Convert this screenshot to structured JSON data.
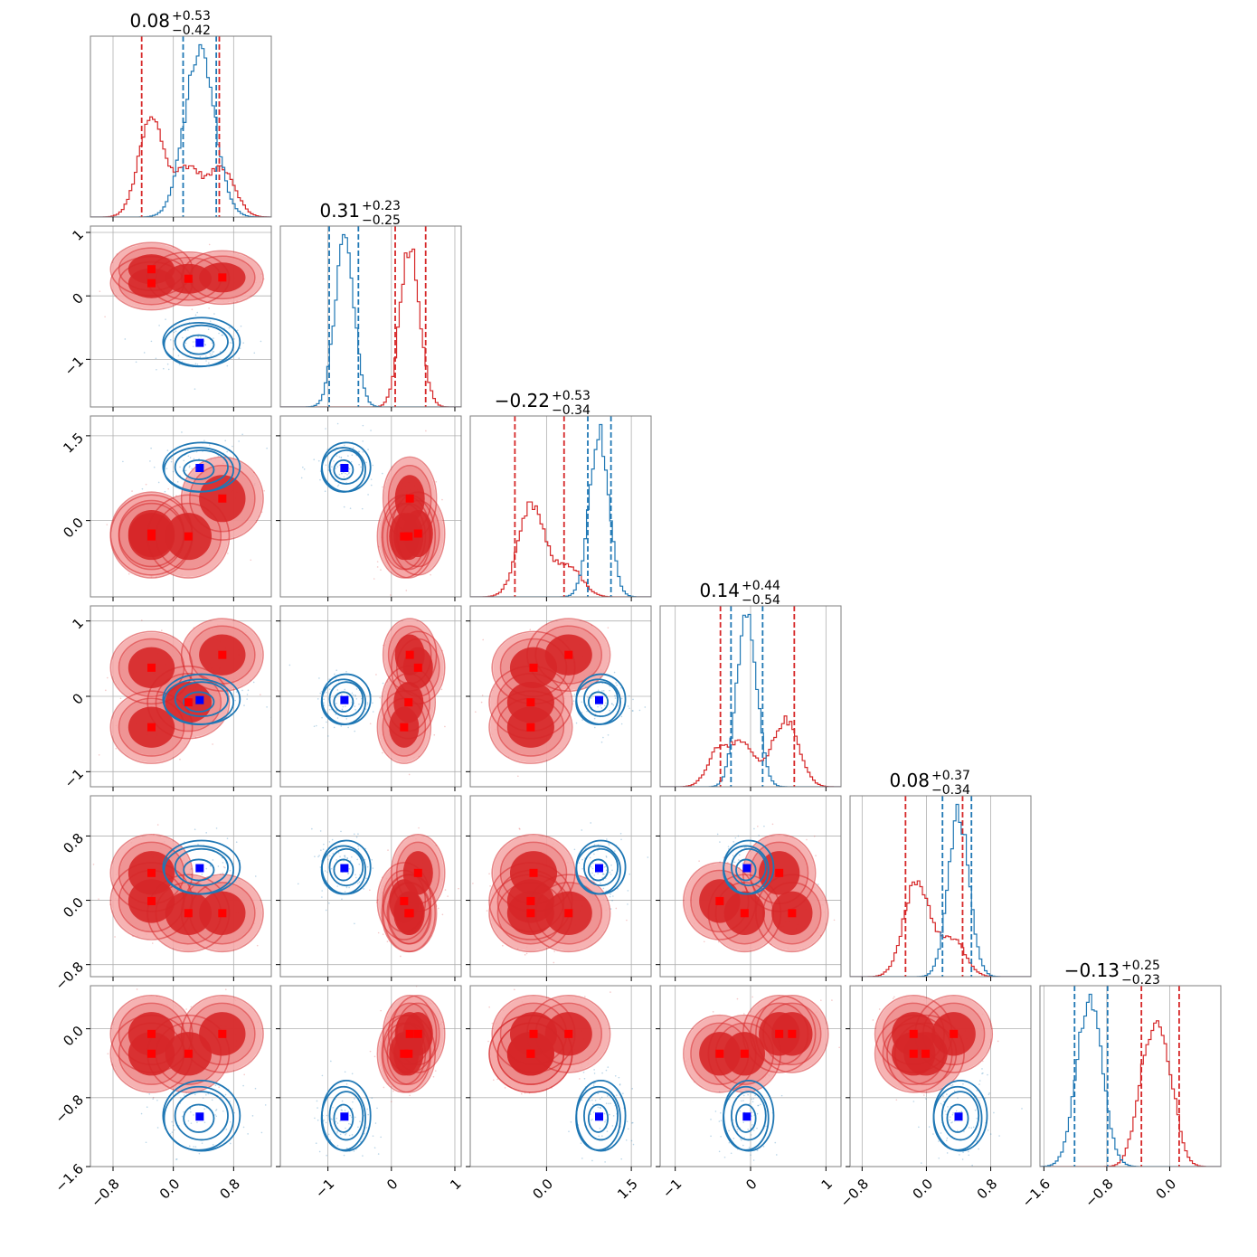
{
  "chart_data": {
    "type": "corner",
    "n_params": 6,
    "grid": true,
    "colors": {
      "series_a": "#d62728",
      "series_b": "#1f77b4",
      "marker_a": "#ff0000",
      "marker_b": "#0000ff"
    },
    "axes": [
      {
        "range": [
          -1.1,
          1.3
        ],
        "ticks": [
          -0.8,
          0.0,
          0.8
        ],
        "tick_labels": [
          "−0.8",
          "0.0",
          "0.8"
        ]
      },
      {
        "range": [
          -1.75,
          1.1
        ],
        "ticks": [
          -1,
          0,
          1
        ],
        "tick_labels": [
          "−1",
          "0",
          "1"
        ]
      },
      {
        "range": [
          -1.35,
          1.85
        ],
        "ticks": [
          0.0,
          1.5
        ],
        "tick_labels": [
          "0.0",
          "1.5"
        ]
      },
      {
        "range": [
          -1.2,
          1.2
        ],
        "ticks": [
          -1,
          0,
          1
        ],
        "tick_labels": [
          "−1",
          "0",
          "1"
        ]
      },
      {
        "range": [
          -0.95,
          1.3
        ],
        "ticks": [
          -0.8,
          0.0,
          0.8
        ],
        "tick_labels": [
          "−0.8",
          "0.0",
          "0.8"
        ]
      },
      {
        "range": [
          -1.65,
          0.65
        ],
        "ticks": [
          -1.6,
          -0.8,
          0.0
        ],
        "tick_labels": [
          "−1.6",
          "−0.8",
          "0.0"
        ]
      }
    ],
    "y_tick_override": [
      null,
      null,
      null,
      null,
      null,
      {
        "ticks": [
          -1.6,
          -0.8,
          0.0
        ],
        "tick_labels": [
          "−1.6",
          "−0.8",
          "0.0"
        ],
        "range": [
          -1.6,
          0.5
        ]
      }
    ],
    "titles": [
      {
        "main": "0.08",
        "upper": "+0.53",
        "lower": "−0.42"
      },
      {
        "main": "0.31",
        "upper": "+0.23",
        "lower": "−0.25"
      },
      {
        "main": "−0.22",
        "upper": "+0.53",
        "lower": "−0.34"
      },
      {
        "main": "0.14",
        "upper": "+0.44",
        "lower": "−0.54"
      },
      {
        "main": "0.08",
        "upper": "+0.37",
        "lower": "−0.34"
      },
      {
        "main": "−0.13",
        "upper": "+0.25",
        "lower": "−0.23"
      }
    ],
    "quantiles_a": [
      [
        -0.42,
        0.61
      ],
      [
        0.06,
        0.54
      ],
      [
        -0.56,
        0.31
      ],
      [
        -0.4,
        0.58
      ],
      [
        -0.26,
        0.45
      ],
      [
        -0.36,
        0.12
      ]
    ],
    "quantiles_b": [
      [
        0.13,
        0.57
      ],
      [
        -0.98,
        -0.52
      ],
      [
        0.73,
        1.14
      ],
      [
        -0.26,
        0.16
      ],
      [
        0.2,
        0.56
      ],
      [
        -1.21,
        -0.79
      ]
    ],
    "marker_a_points": [
      [
        -0.29,
        0.42,
        -0.23,
        0.38,
        0.34,
        -0.06
      ],
      [
        -0.29,
        0.2,
        -0.28,
        -0.41,
        -0.01,
        -0.29
      ],
      [
        0.2,
        0.27,
        -0.28,
        -0.08,
        -0.16,
        -0.29
      ],
      [
        0.65,
        0.29,
        0.39,
        0.55,
        -0.16,
        -0.06
      ]
    ],
    "marker_b_point": [
      0.35,
      -0.74,
      0.93,
      -0.05,
      0.4,
      -1.02
    ],
    "components_a": {
      "weights": [
        0.25,
        0.25,
        0.25,
        0.25
      ],
      "sd": [
        0.17,
        0.13,
        0.23,
        0.15,
        0.15,
        0.14
      ]
    },
    "component_b": {
      "sd": [
        0.2,
        0.15,
        0.17,
        0.13,
        0.13,
        0.16
      ]
    }
  }
}
